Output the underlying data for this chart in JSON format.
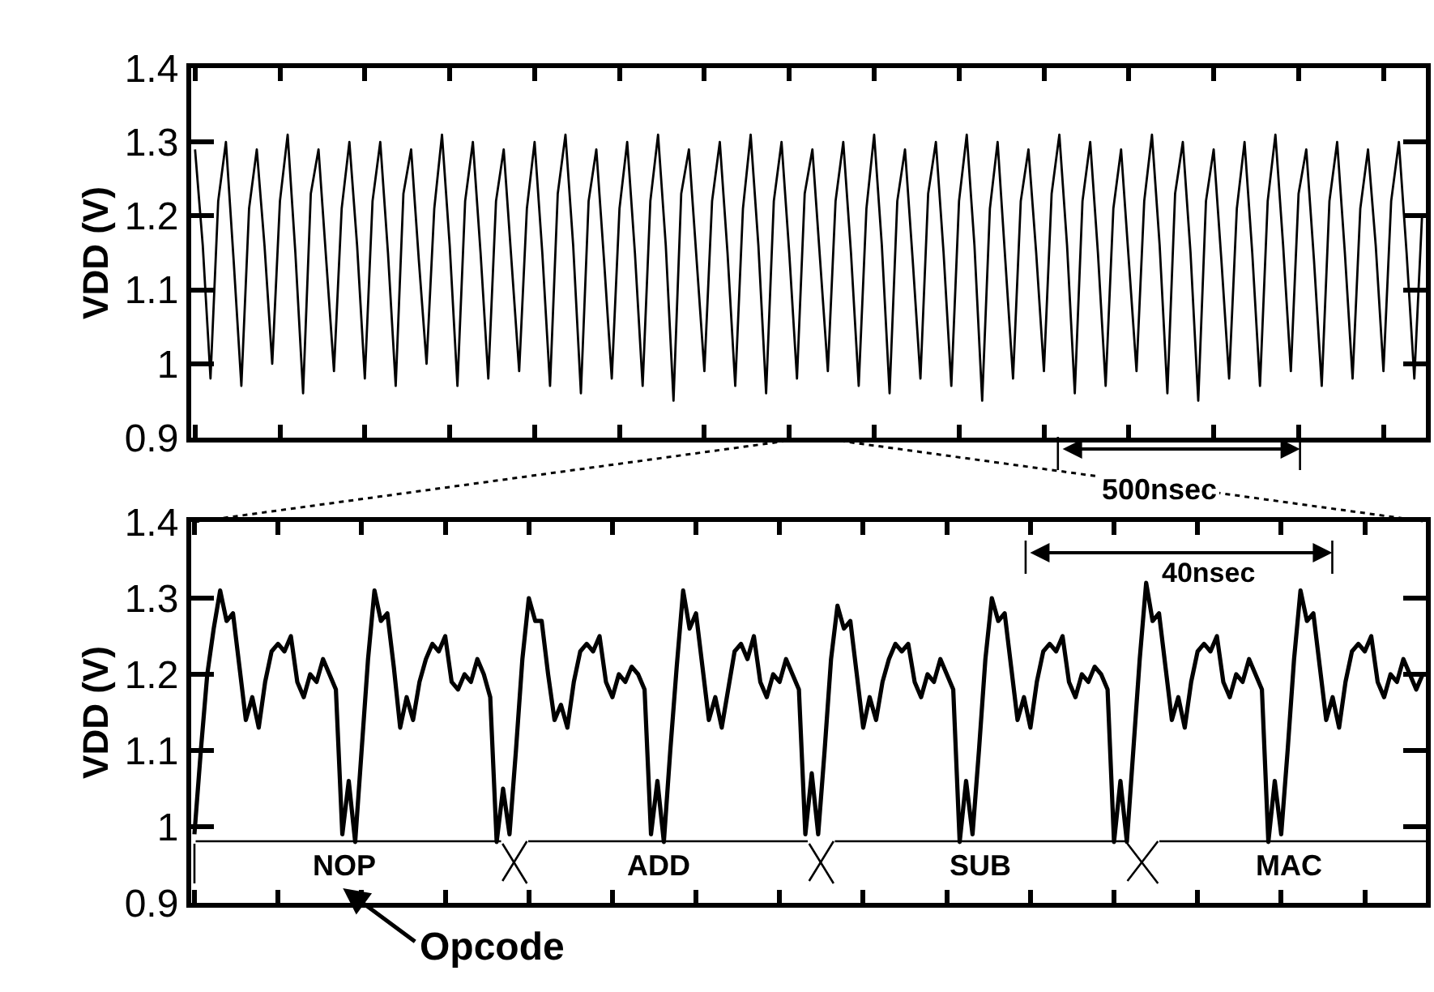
{
  "chart_data": [
    {
      "type": "line",
      "ylabel": "VDD (V)",
      "ylim": [
        0.9,
        1.4
      ],
      "yticks": [
        0.9,
        1,
        1.1,
        1.2,
        1.3,
        1.4
      ],
      "grid": false,
      "legend": false,
      "tick_labels": "y",
      "categories": [
        null,
        null,
        null,
        null,
        null,
        null,
        null,
        null,
        null,
        null,
        null,
        null,
        null,
        null,
        null,
        null,
        null,
        null,
        null,
        null,
        null,
        null,
        null,
        null,
        null,
        null,
        null,
        null,
        null,
        null,
        null,
        null,
        null,
        null,
        null,
        null,
        null,
        null,
        null,
        null,
        null,
        null,
        null,
        null,
        null,
        null,
        null,
        null,
        null,
        null,
        null,
        null,
        null,
        null,
        null,
        null,
        null,
        null,
        null,
        null,
        null,
        null,
        null,
        null,
        null,
        null,
        null,
        null,
        null,
        null,
        null,
        null,
        null,
        null,
        null,
        null,
        null,
        null,
        null,
        null,
        null,
        null,
        null,
        null,
        null,
        null,
        null,
        null,
        null,
        null,
        null,
        null,
        null,
        null,
        null,
        null,
        null,
        null,
        null,
        null,
        null,
        null,
        null,
        null,
        null,
        null,
        null,
        null,
        null,
        null,
        null,
        null,
        null,
        null,
        null,
        null,
        null,
        null,
        null,
        null,
        null,
        null,
        null,
        null,
        null,
        null,
        null,
        null,
        null,
        null,
        null,
        null,
        null,
        null,
        null,
        null,
        null,
        null,
        null,
        null,
        null,
        null,
        null,
        null,
        null,
        null,
        null,
        null,
        null,
        null,
        null,
        null,
        null,
        null,
        null,
        null,
        null,
        null,
        null,
        null
      ],
      "series": [
        {
          "color": "#000000",
          "values": [
            1.29,
            1.16,
            0.98,
            1.22,
            1.3,
            1.14,
            0.97,
            1.21,
            1.29,
            1.16,
            1.0,
            1.22,
            1.31,
            1.15,
            0.96,
            1.23,
            1.29,
            1.14,
            0.99,
            1.21,
            1.3,
            1.16,
            0.98,
            1.22,
            1.3,
            1.15,
            0.97,
            1.23,
            1.29,
            1.14,
            1.0,
            1.21,
            1.31,
            1.16,
            0.97,
            1.22,
            1.3,
            1.15,
            0.98,
            1.22,
            1.29,
            1.14,
            0.99,
            1.21,
            1.3,
            1.15,
            0.97,
            1.23,
            1.31,
            1.16,
            0.96,
            1.22,
            1.29,
            1.14,
            0.98,
            1.21,
            1.3,
            1.15,
            0.97,
            1.22,
            1.31,
            1.16,
            0.95,
            1.23,
            1.29,
            1.14,
            0.99,
            1.22,
            1.3,
            1.15,
            0.97,
            1.21,
            1.31,
            1.16,
            0.96,
            1.22,
            1.3,
            1.15,
            0.98,
            1.23,
            1.29,
            1.14,
            0.99,
            1.22,
            1.3,
            1.15,
            0.97,
            1.21,
            1.31,
            1.16,
            0.96,
            1.22,
            1.29,
            1.14,
            0.98,
            1.23,
            1.3,
            1.15,
            0.97,
            1.22,
            1.31,
            1.16,
            0.95,
            1.21,
            1.3,
            1.14,
            0.98,
            1.22,
            1.29,
            1.15,
            0.99,
            1.23,
            1.31,
            1.16,
            0.96,
            1.22,
            1.3,
            1.15,
            0.97,
            1.21,
            1.29,
            1.14,
            0.99,
            1.22,
            1.31,
            1.16,
            0.96,
            1.23,
            1.3,
            1.15,
            0.95,
            1.22,
            1.29,
            1.14,
            0.98,
            1.21,
            1.3,
            1.15,
            0.97,
            1.22,
            1.31,
            1.16,
            0.99,
            1.23,
            1.29,
            1.14,
            0.97,
            1.22,
            1.3,
            1.15,
            0.98,
            1.21,
            1.29,
            1.16,
            0.99,
            1.22,
            1.3,
            1.15,
            0.98,
            1.2
          ]
        }
      ],
      "annotations": [
        "500nsec"
      ]
    },
    {
      "type": "line",
      "ylabel": "VDD (V)",
      "ylim": [
        0.9,
        1.4
      ],
      "yticks": [
        0.9,
        1,
        1.1,
        1.2,
        1.3,
        1.4
      ],
      "grid": false,
      "legend": false,
      "tick_labels": "y",
      "categories": [
        null,
        null,
        null,
        null,
        null,
        null,
        null,
        null,
        null,
        null,
        null,
        null,
        null,
        null,
        null,
        null,
        null,
        null,
        null,
        null,
        null,
        null,
        null,
        null,
        null,
        null,
        null,
        null,
        null,
        null,
        null,
        null,
        null,
        null,
        null,
        null,
        null,
        null,
        null,
        null,
        null,
        null,
        null,
        null,
        null,
        null,
        null,
        null,
        null,
        null,
        null,
        null,
        null,
        null,
        null,
        null,
        null,
        null,
        null,
        null,
        null,
        null,
        null,
        null,
        null,
        null,
        null,
        null,
        null,
        null,
        null,
        null,
        null,
        null,
        null,
        null,
        null,
        null,
        null,
        null,
        null,
        null,
        null,
        null,
        null,
        null,
        null,
        null,
        null,
        null,
        null,
        null,
        null,
        null,
        null,
        null,
        null,
        null,
        null,
        null,
        null,
        null,
        null,
        null,
        null,
        null,
        null,
        null,
        null,
        null,
        null,
        null,
        null,
        null,
        null,
        null,
        null,
        null,
        null,
        null,
        null,
        null,
        null,
        null,
        null,
        null,
        null,
        null,
        null,
        null,
        null,
        null,
        null,
        null,
        null,
        null,
        null,
        null,
        null,
        null,
        null,
        null,
        null,
        null,
        null,
        null,
        null,
        null,
        null,
        null,
        null,
        null,
        null,
        null,
        null,
        null,
        null,
        null,
        null,
        null,
        null,
        null,
        null,
        null,
        null,
        null,
        null,
        null,
        null,
        null,
        null,
        null,
        null,
        null,
        null,
        null,
        null,
        null,
        null,
        null,
        null,
        null,
        null,
        null,
        null,
        null,
        null,
        null,
        null,
        null,
        null,
        null
      ],
      "series": [
        {
          "color": "#000000",
          "values": [
            0.99,
            1.1,
            1.2,
            1.26,
            1.31,
            1.27,
            1.28,
            1.21,
            1.14,
            1.17,
            1.13,
            1.19,
            1.23,
            1.24,
            1.23,
            1.25,
            1.19,
            1.17,
            1.2,
            1.19,
            1.22,
            1.2,
            1.18,
            0.99,
            1.06,
            0.98,
            1.1,
            1.22,
            1.31,
            1.27,
            1.28,
            1.21,
            1.13,
            1.17,
            1.14,
            1.19,
            1.22,
            1.24,
            1.23,
            1.25,
            1.19,
            1.18,
            1.2,
            1.19,
            1.22,
            1.2,
            1.17,
            0.98,
            1.05,
            0.99,
            1.1,
            1.22,
            1.3,
            1.27,
            1.27,
            1.2,
            1.14,
            1.16,
            1.13,
            1.19,
            1.23,
            1.24,
            1.23,
            1.25,
            1.19,
            1.17,
            1.2,
            1.19,
            1.21,
            1.2,
            1.18,
            0.99,
            1.06,
            0.98,
            1.1,
            1.21,
            1.31,
            1.26,
            1.28,
            1.21,
            1.14,
            1.17,
            1.13,
            1.18,
            1.23,
            1.24,
            1.22,
            1.25,
            1.19,
            1.17,
            1.2,
            1.19,
            1.22,
            1.2,
            1.18,
            0.99,
            1.07,
            0.99,
            1.1,
            1.22,
            1.29,
            1.26,
            1.27,
            1.2,
            1.13,
            1.17,
            1.14,
            1.19,
            1.22,
            1.24,
            1.23,
            1.24,
            1.19,
            1.17,
            1.2,
            1.19,
            1.22,
            1.2,
            1.18,
            0.98,
            1.06,
            0.99,
            1.1,
            1.22,
            1.3,
            1.27,
            1.28,
            1.21,
            1.14,
            1.17,
            1.13,
            1.19,
            1.23,
            1.24,
            1.23,
            1.25,
            1.19,
            1.17,
            1.2,
            1.19,
            1.21,
            1.2,
            1.18,
            0.98,
            1.06,
            0.98,
            1.1,
            1.22,
            1.32,
            1.27,
            1.28,
            1.21,
            1.14,
            1.17,
            1.13,
            1.19,
            1.23,
            1.24,
            1.23,
            1.25,
            1.19,
            1.17,
            1.2,
            1.19,
            1.22,
            1.2,
            1.18,
            0.98,
            1.06,
            0.99,
            1.1,
            1.22,
            1.31,
            1.27,
            1.28,
            1.21,
            1.14,
            1.17,
            1.13,
            1.19,
            1.23,
            1.24,
            1.23,
            1.25,
            1.19,
            1.17,
            1.2,
            1.19,
            1.22,
            1.2,
            1.18,
            1.2
          ]
        }
      ],
      "annotations": [
        "40nsec",
        "NOP",
        "ADD",
        "SUB",
        "MAC",
        "Opcode"
      ]
    }
  ]
}
